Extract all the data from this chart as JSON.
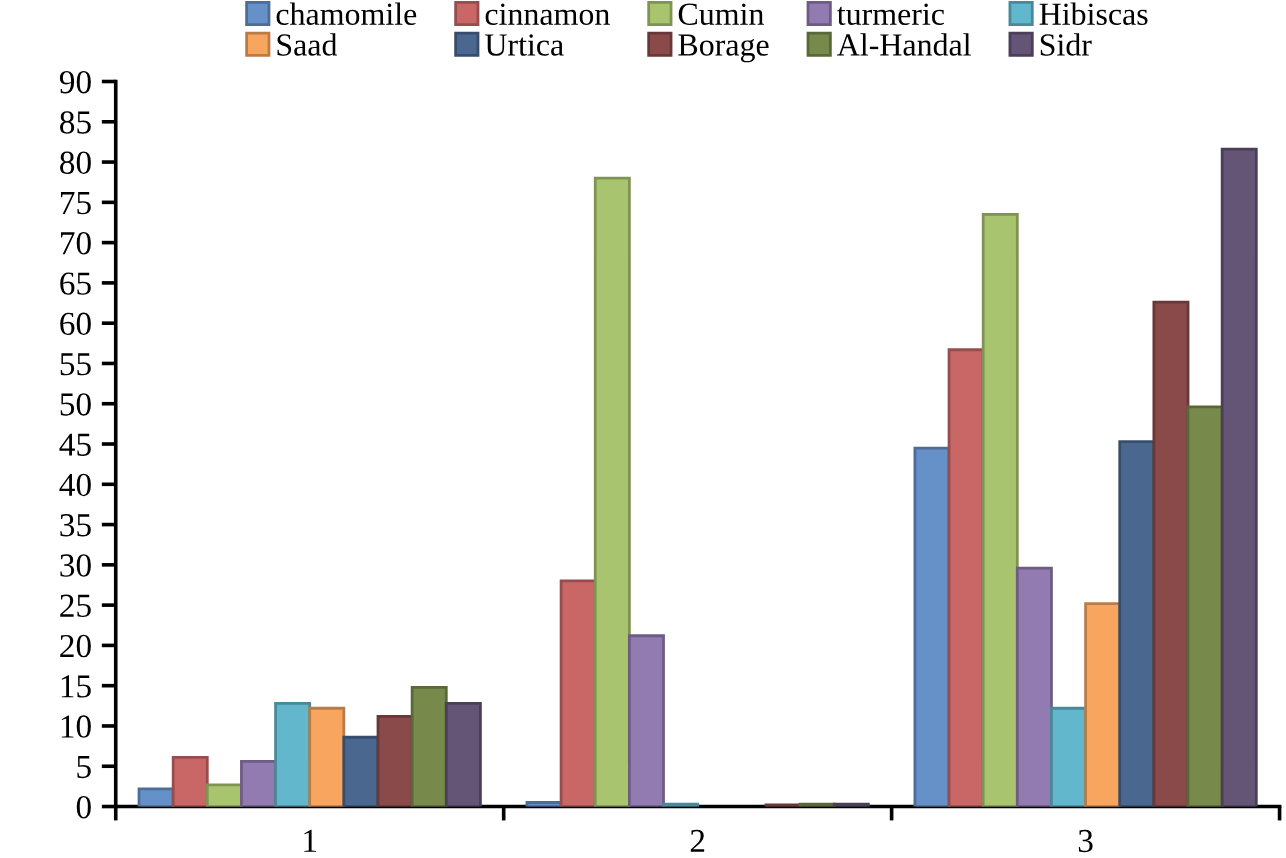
{
  "chart_data": {
    "type": "bar",
    "categories": [
      "1",
      "2",
      "3"
    ],
    "series": [
      {
        "name": "chamomile",
        "color": "#6690c8",
        "values": [
          2.2,
          0.5,
          44.5
        ]
      },
      {
        "name": "cinnamon",
        "color": "#c96666",
        "values": [
          6.1,
          28,
          56.7
        ]
      },
      {
        "name": "Cumin",
        "color": "#a9c46e",
        "values": [
          2.7,
          78,
          73.5
        ]
      },
      {
        "name": "turmeric",
        "color": "#927bb1",
        "values": [
          5.6,
          21.2,
          29.6
        ]
      },
      {
        "name": "Hibiscas",
        "color": "#62b7cc",
        "values": [
          12.8,
          0.3,
          12.2
        ]
      },
      {
        "name": "Saad",
        "color": "#f7a55f",
        "values": [
          12.2,
          null,
          25.2
        ]
      },
      {
        "name": "Urtica",
        "color": "#4a6790",
        "values": [
          8.6,
          null,
          45.3
        ]
      },
      {
        "name": "Borage",
        "color": "#8a4a4a",
        "values": [
          11.2,
          0.2,
          62.6
        ]
      },
      {
        "name": "Al-Handal",
        "color": "#778a4c",
        "values": [
          14.8,
          0.3,
          49.6
        ]
      },
      {
        "name": "Sidr",
        "color": "#645475",
        "values": [
          12.8,
          0.3,
          81.6
        ]
      }
    ],
    "ylim": [
      0,
      90
    ],
    "yticks": [
      0,
      5,
      10,
      15,
      20,
      25,
      30,
      35,
      40,
      45,
      50,
      55,
      60,
      65,
      70,
      75,
      80,
      85,
      90
    ],
    "grid": false,
    "legend": "top"
  }
}
